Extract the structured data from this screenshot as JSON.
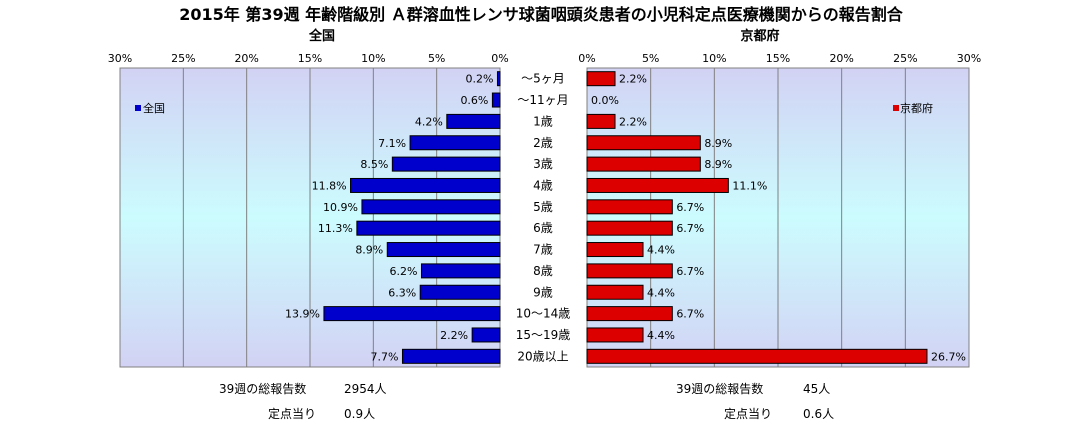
{
  "title": "2015年 第39週 年齢階級別 Ａ群溶血性レンサ球菌咽頭炎患者の小児科定点医療機関からの報告割合",
  "chart_data": {
    "type": "bar",
    "categories": [
      "～5ヶ月",
      "～11ヶ月",
      "1歳",
      "2歳",
      "3歳",
      "4歳",
      "5歳",
      "6歳",
      "7歳",
      "8歳",
      "9歳",
      "10～14歳",
      "15～19歳",
      "20歳以上"
    ],
    "xlim": [
      0,
      30
    ],
    "ticks": [
      0,
      5,
      10,
      15,
      20,
      25,
      30
    ],
    "tick_labels_left": [
      "0%",
      "5%",
      "10%",
      "15%",
      "20%",
      "25%",
      "30%"
    ],
    "tick_labels_right": [
      "0%",
      "5%",
      "10%",
      "15%",
      "20%",
      "25%",
      "30%"
    ],
    "grid": true,
    "panels": [
      {
        "name": "全国",
        "subtitle": "全国",
        "legend": "全国",
        "legend_position": "top-left",
        "color": "#0000cc",
        "values": [
          0.2,
          0.6,
          4.2,
          7.1,
          8.5,
          11.8,
          10.9,
          11.3,
          8.9,
          6.2,
          6.3,
          13.9,
          2.2,
          7.7
        ],
        "labels": [
          "0.2%",
          "0.6%",
          "4.2%",
          "7.1%",
          "8.5%",
          "11.8%",
          "10.9%",
          "11.3%",
          "8.9%",
          "6.2%",
          "6.3%",
          "13.9%",
          "2.2%",
          "7.7%"
        ]
      },
      {
        "name": "京都府",
        "subtitle": "京都府",
        "legend": "京都府",
        "legend_position": "top-right",
        "color": "#dd0000",
        "values": [
          2.2,
          0.0,
          2.2,
          8.9,
          8.9,
          11.1,
          6.7,
          6.7,
          4.4,
          6.7,
          4.4,
          6.7,
          4.4,
          26.7
        ],
        "labels": [
          "2.2%",
          "0.0%",
          "2.2%",
          "8.9%",
          "8.9%",
          "11.1%",
          "6.7%",
          "6.7%",
          "4.4%",
          "6.7%",
          "4.4%",
          "6.7%",
          "4.4%",
          "26.7%"
        ]
      }
    ]
  },
  "footer": {
    "left": {
      "total_label": "39週の総報告数",
      "total_value": "2954人",
      "per_label": "定点当り",
      "per_value": "0.9人"
    },
    "right": {
      "total_label": "39週の総報告数",
      "total_value": "45人",
      "per_label": "定点当り",
      "per_value": "0.6人"
    }
  },
  "colors": {
    "plot_gradient_top": "#d2d2f4",
    "plot_gradient_mid": "#ccfcfe",
    "plot_gradient_bottom": "#d2d2f4",
    "grid": "#808080"
  }
}
